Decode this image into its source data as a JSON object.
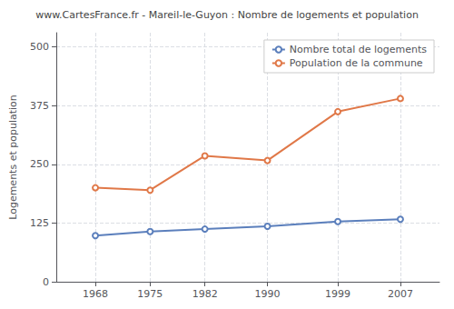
{
  "chart_data": {
    "type": "line",
    "title": "www.CartesFrance.fr - Mareil-le-Guyon : Nombre de logements et population",
    "ylabel": "Logements et population",
    "x": [
      1968,
      1975,
      1982,
      1990,
      1999,
      2007
    ],
    "series": [
      {
        "name": "Nombre total de logements",
        "color": "#5b7fbc",
        "values": [
          98,
          107,
          112,
          118,
          128,
          133
        ]
      },
      {
        "name": "Population de la commune",
        "color": "#e07848",
        "values": [
          200,
          195,
          268,
          258,
          362,
          390
        ]
      }
    ],
    "xlim": [
      1963,
      2012
    ],
    "xticks": [
      1968,
      1975,
      1982,
      1990,
      1999,
      2007
    ],
    "ylim": [
      0,
      530
    ],
    "yticks": [
      0,
      125,
      250,
      375,
      500
    ],
    "grid": true,
    "legend": "upper right",
    "marker": "circle"
  }
}
